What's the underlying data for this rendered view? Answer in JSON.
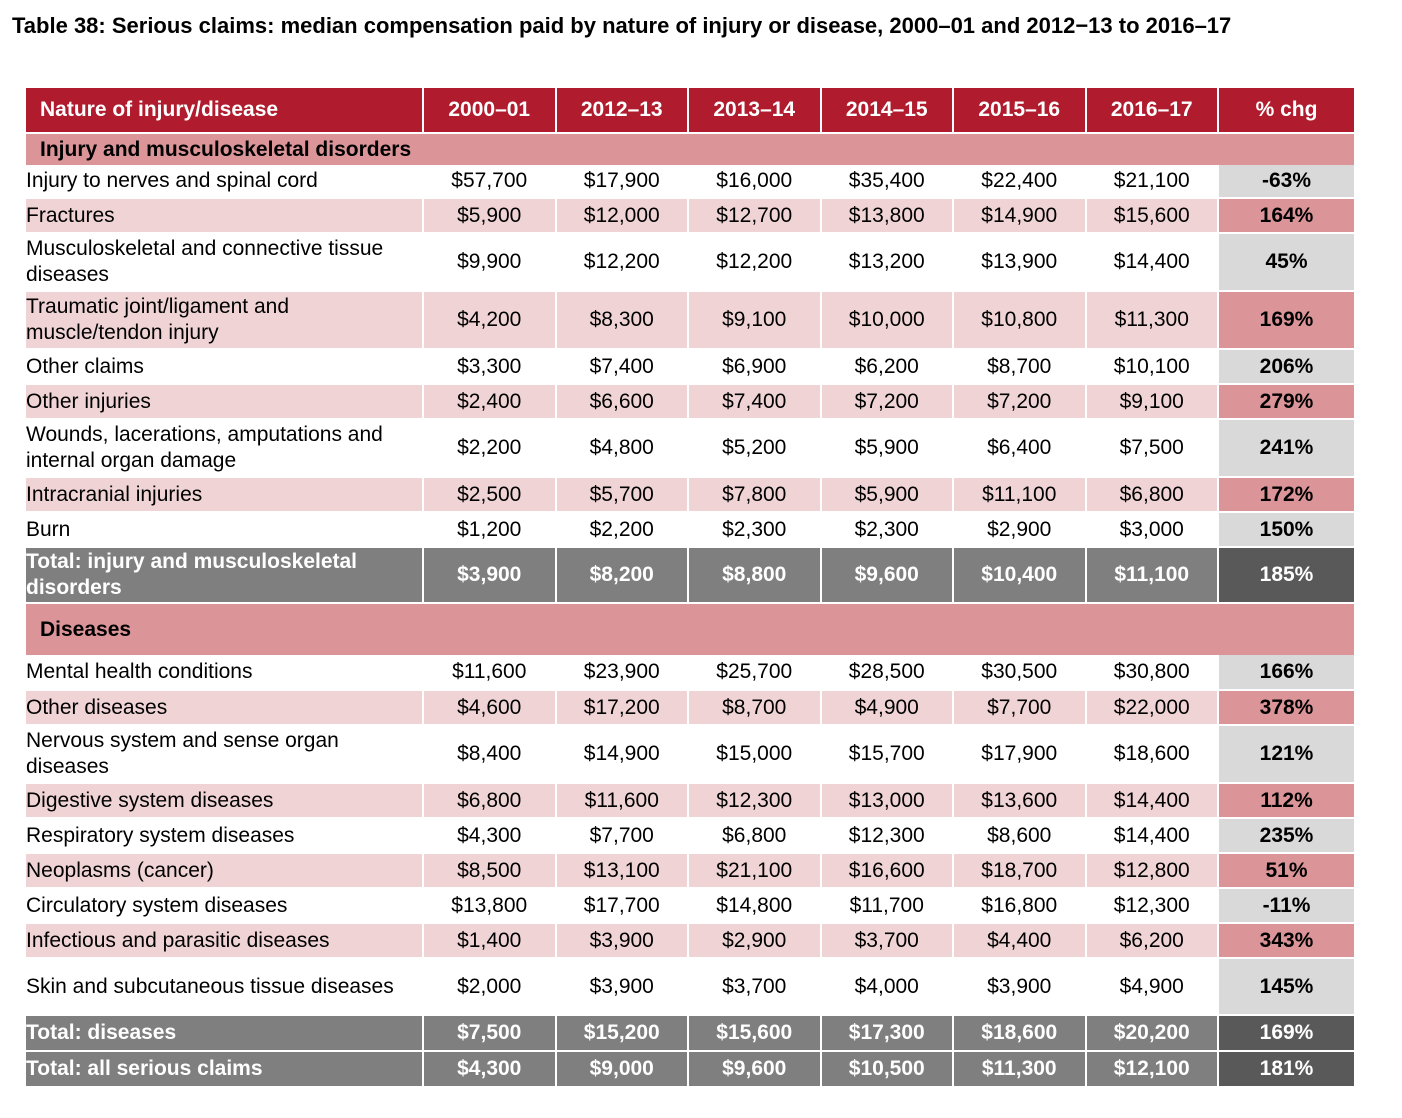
{
  "title": "Table 38: Serious claims: median compensation paid by nature of injury or disease, 2000–01 and 2012−13 to 2016–17",
  "header": [
    "Nature of injury/disease",
    "2000–01",
    "2012–13",
    "2013–14",
    "2014–15",
    "2015–16",
    "2016–17",
    "% chg"
  ],
  "sections": [
    {
      "title": "Injury and musculoskeletal disorders",
      "rows": [
        {
          "label": "Injury to nerves and spinal cord",
          "values": [
            "$57,700",
            "$17,900",
            "$16,000",
            "$35,400",
            "$22,400",
            "$21,100"
          ],
          "pct": "-63%"
        },
        {
          "label": "Fractures",
          "values": [
            "$5,900",
            "$12,000",
            "$12,700",
            "$13,800",
            "$14,900",
            "$15,600"
          ],
          "pct": "164%"
        },
        {
          "label": "Musculoskeletal and connective tissue diseases",
          "values": [
            "$9,900",
            "$12,200",
            "$12,200",
            "$13,200",
            "$13,900",
            "$14,400"
          ],
          "pct": "45%"
        },
        {
          "label": "Traumatic joint/ligament and muscle/tendon injury",
          "values": [
            "$4,200",
            "$8,300",
            "$9,100",
            "$10,000",
            "$10,800",
            "$11,300"
          ],
          "pct": "169%"
        },
        {
          "label": "Other claims",
          "values": [
            "$3,300",
            "$7,400",
            "$6,900",
            "$6,200",
            "$8,700",
            "$10,100"
          ],
          "pct": "206%"
        },
        {
          "label": "Other injuries",
          "values": [
            "$2,400",
            "$6,600",
            "$7,400",
            "$7,200",
            "$7,200",
            "$9,100"
          ],
          "pct": "279%"
        },
        {
          "label": "Wounds, lacerations, amputations and internal organ damage",
          "values": [
            "$2,200",
            "$4,800",
            "$5,200",
            "$5,900",
            "$6,400",
            "$7,500"
          ],
          "pct": "241%"
        },
        {
          "label": "Intracranial injuries",
          "values": [
            "$2,500",
            "$5,700",
            "$7,800",
            "$5,900",
            "$11,100",
            "$6,800"
          ],
          "pct": "172%"
        },
        {
          "label": "Burn",
          "values": [
            "$1,200",
            "$2,200",
            "$2,300",
            "$2,300",
            "$2,900",
            "$3,000"
          ],
          "pct": "150%"
        }
      ],
      "total": {
        "label": "Total: injury and musculoskeletal disorders",
        "values": [
          "$3,900",
          "$8,200",
          "$8,800",
          "$9,600",
          "$10,400",
          "$11,100"
        ],
        "pct": "185%"
      }
    },
    {
      "title": "Diseases",
      "rows": [
        {
          "label": "Mental health conditions",
          "values": [
            "$11,600",
            "$23,900",
            "$25,700",
            "$28,500",
            "$30,500",
            "$30,800"
          ],
          "pct": "166%"
        },
        {
          "label": "Other diseases",
          "values": [
            "$4,600",
            "$17,200",
            "$8,700",
            "$4,900",
            "$7,700",
            "$22,000"
          ],
          "pct": "378%"
        },
        {
          "label": "Nervous system and sense organ diseases",
          "values": [
            "$8,400",
            "$14,900",
            "$15,000",
            "$15,700",
            "$17,900",
            "$18,600"
          ],
          "pct": "121%"
        },
        {
          "label": "Digestive system diseases",
          "values": [
            "$6,800",
            "$11,600",
            "$12,300",
            "$13,000",
            "$13,600",
            "$14,400"
          ],
          "pct": "112%"
        },
        {
          "label": "Respiratory system diseases",
          "values": [
            "$4,300",
            "$7,700",
            "$6,800",
            "$12,300",
            "$8,600",
            "$14,400"
          ],
          "pct": "235%"
        },
        {
          "label": "Neoplasms (cancer)",
          "values": [
            "$8,500",
            "$13,100",
            "$21,100",
            "$16,600",
            "$18,700",
            "$12,800"
          ],
          "pct": "51%"
        },
        {
          "label": "Circulatory system diseases",
          "values": [
            "$13,800",
            "$17,700",
            "$14,800",
            "$11,700",
            "$16,800",
            "$12,300"
          ],
          "pct": "-11%"
        },
        {
          "label": "Infectious and parasitic diseases",
          "values": [
            "$1,400",
            "$3,900",
            "$2,900",
            "$3,700",
            "$4,400",
            "$6,200"
          ],
          "pct": "343%"
        },
        {
          "label": "Skin and subcutaneous tissue diseases",
          "values": [
            "$2,000",
            "$3,900",
            "$3,700",
            "$4,000",
            "$3,900",
            "$4,900"
          ],
          "pct": "145%"
        }
      ],
      "total": {
        "label": "Total: diseases",
        "values": [
          "$7,500",
          "$15,200",
          "$15,600",
          "$17,300",
          "$18,600",
          "$20,200"
        ],
        "pct": "169%"
      }
    }
  ],
  "grand_total": {
    "label": "Total: all serious claims",
    "values": [
      "$4,300",
      "$9,000",
      "$9,600",
      "$10,500",
      "$11,300",
      "$12,100"
    ],
    "pct": "181%"
  }
}
